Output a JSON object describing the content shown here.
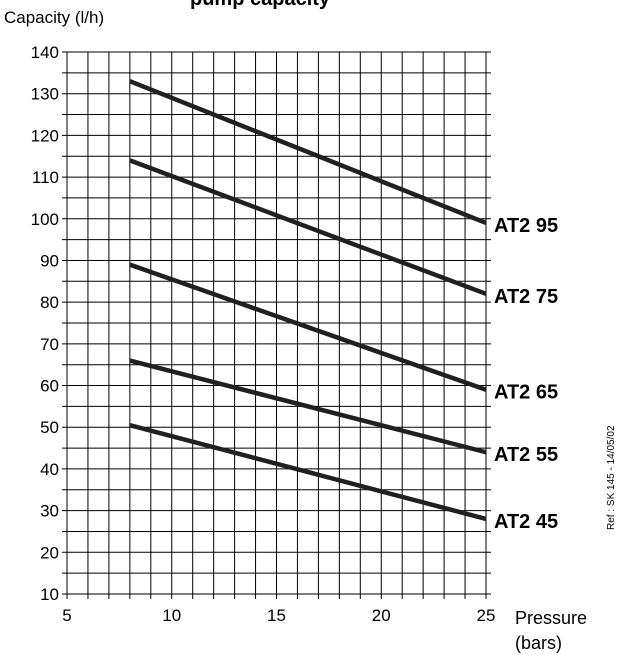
{
  "chart_data": {
    "type": "line",
    "title": "pump capacity",
    "ylabel": "Capacity  (l/h)",
    "xlabel_line1": "Pressure",
    "xlabel_line2": "(bars)",
    "reference": "Ref : SK 145 - 14/05/02",
    "xlim": [
      5,
      25
    ],
    "ylim": [
      10,
      140
    ],
    "x_ticks": [
      5,
      10,
      15,
      20,
      25
    ],
    "y_ticks": [
      10,
      20,
      30,
      40,
      50,
      60,
      70,
      80,
      90,
      100,
      110,
      120,
      130,
      140
    ],
    "grid": true,
    "series": [
      {
        "name": "AT2 95",
        "x": [
          8,
          25
        ],
        "values": [
          133,
          99
        ]
      },
      {
        "name": "AT2 75",
        "x": [
          8,
          25
        ],
        "values": [
          114,
          82
        ]
      },
      {
        "name": "AT2 65",
        "x": [
          8,
          25
        ],
        "values": [
          89,
          59
        ]
      },
      {
        "name": "AT2 55",
        "x": [
          8,
          25
        ],
        "values": [
          66,
          44
        ]
      },
      {
        "name": "AT2 45",
        "x": [
          8,
          25
        ],
        "values": [
          50.5,
          28
        ]
      }
    ]
  },
  "colors": {
    "line": "#231f20",
    "grid": "#000000",
    "background": "#ffffff"
  }
}
